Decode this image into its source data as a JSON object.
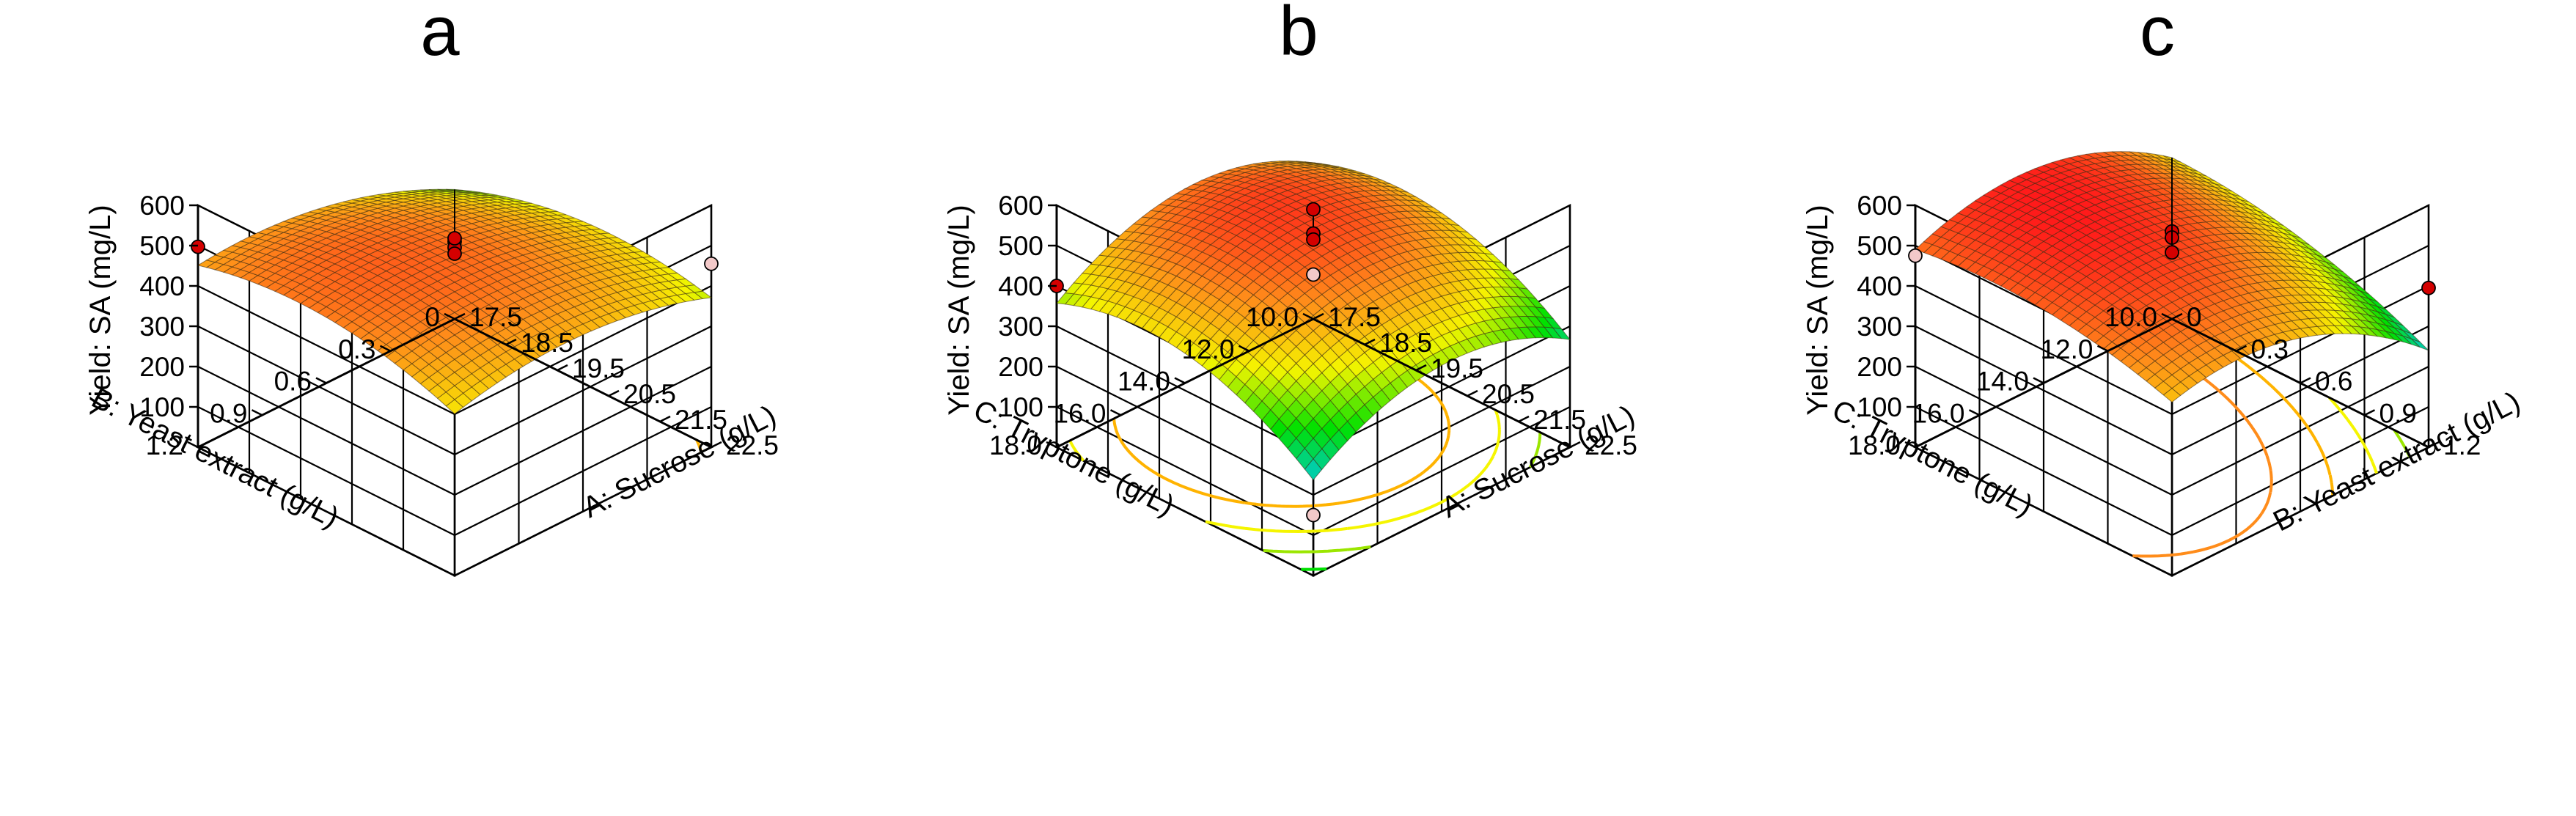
{
  "figure": {
    "panel_labels": [
      "a",
      "b",
      "c"
    ]
  },
  "colors": {
    "floor": "#5f5f5f",
    "point_high": "#d40000",
    "point_low": "#f3c9c9",
    "colormap": [
      "#0a3fd4",
      "#00c8e6",
      "#00e000",
      "#f5f500",
      "#ff8c1a",
      "#ff1a1a"
    ]
  },
  "chart_data": [
    {
      "type": "surface3d",
      "panel": "a",
      "title": "a",
      "zlabel": "Yield: SA (mg/L)",
      "zlim": [
        0,
        600
      ],
      "zticks": [
        100,
        200,
        300,
        400,
        500,
        600
      ],
      "colorscale_range": [
        150,
        550
      ],
      "x_axis": {
        "label": "A: Sucrose (g/L)",
        "range": [
          17.5,
          22.5
        ],
        "ticks": [
          "17.5",
          "18.5",
          "19.5",
          "20.5",
          "21.5",
          "22.5"
        ]
      },
      "y_axis": {
        "label": "B: Yeast extract (g/L)",
        "range": [
          0,
          1.2
        ],
        "ticks": [
          "0",
          "0.3",
          "0.6",
          "0.9",
          "1.2"
        ]
      },
      "model": {
        "center": [
          20,
          0.6
        ],
        "b0": 493,
        "bx": 0,
        "by": 40,
        "bxx": -55,
        "byy": -52,
        "bxy": -25
      },
      "design_points": [
        {
          "x": 17.5,
          "y": 1.2,
          "z": 497,
          "above": true
        },
        {
          "x": 22.5,
          "y": 0,
          "z": 455,
          "above": false
        },
        {
          "x": 20,
          "y": 0.6,
          "z": 510,
          "above": true
        },
        {
          "x": 20,
          "y": 0.6,
          "z": 495,
          "above": true
        },
        {
          "x": 20,
          "y": 0.6,
          "z": 480,
          "above": true
        },
        {
          "x": 17.5,
          "y": 0,
          "z": 200,
          "above": true
        }
      ],
      "contour_levels": [
        {
          "z": 260,
          "color": "#00e000"
        },
        {
          "z": 300,
          "color": "#9be600"
        },
        {
          "z": 340,
          "color": "#f5f500"
        },
        {
          "z": 380,
          "color": "#ffb300"
        }
      ]
    },
    {
      "type": "surface3d",
      "panel": "b",
      "title": "b",
      "zlabel": "Yield: SA (mg/L)",
      "zlim": [
        0,
        600
      ],
      "zticks": [
        100,
        200,
        300,
        400,
        500,
        600
      ],
      "colorscale_range": [
        150,
        550
      ],
      "x_axis": {
        "label": "A: Sucrose (g/L)",
        "range": [
          17.5,
          22.5
        ],
        "ticks": [
          "17.5",
          "18.5",
          "19.5",
          "20.5",
          "21.5",
          "22.5"
        ]
      },
      "y_axis": {
        "label": "C: Tryptone (g/L)",
        "range": [
          10,
          18
        ],
        "ticks": [
          "10.0",
          "12.0",
          "14.0",
          "16.0",
          "18.0"
        ]
      },
      "model": {
        "center": [
          20,
          14
        ],
        "b0": 517,
        "bx": -60,
        "by": -15,
        "bxx": -95,
        "byy": -110,
        "bxy": 0
      },
      "design_points": [
        {
          "x": 17.5,
          "y": 18,
          "z": 400,
          "above": true
        },
        {
          "x": 20,
          "y": 14,
          "z": 590,
          "above": true
        },
        {
          "x": 20,
          "y": 14,
          "z": 530,
          "above": true
        },
        {
          "x": 20,
          "y": 14,
          "z": 515,
          "above": true
        },
        {
          "x": 22.5,
          "y": 18,
          "z": 150,
          "above": false
        },
        {
          "x": 17.5,
          "y": 10,
          "z": 110,
          "above": false
        }
      ],
      "contour_levels": [
        {
          "z": 200,
          "color": "#00c8e6"
        },
        {
          "z": 260,
          "color": "#00e000"
        },
        {
          "z": 320,
          "color": "#9be600"
        },
        {
          "z": 380,
          "color": "#f5f500"
        },
        {
          "z": 440,
          "color": "#ffb300"
        }
      ]
    },
    {
      "type": "surface3d",
      "panel": "c",
      "title": "c",
      "zlabel": "Yield: SA (mg/L)",
      "zlim": [
        0,
        600
      ],
      "zticks": [
        100,
        200,
        300,
        400,
        500,
        600
      ],
      "colorscale_range": [
        150,
        550
      ],
      "x_axis": {
        "label": "B: Yeast extract (g/L)",
        "range": [
          0,
          1.2
        ],
        "ticks": [
          "0",
          "0.3",
          "0.6",
          "0.9",
          "1.2"
        ]
      },
      "y_axis": {
        "label": "C: Tryptone (g/L)",
        "range": [
          10,
          18
        ],
        "ticks": [
          "10.0",
          "12.0",
          "14.0",
          "16.0",
          "18.0"
        ]
      },
      "model": {
        "center": [
          0.6,
          14
        ],
        "b0": 525,
        "bx": -55,
        "by": 70,
        "bxx": -40,
        "byy": -95,
        "bxy": 25
      },
      "design_points": [
        {
          "x": 0,
          "y": 18,
          "z": 475,
          "above": false
        },
        {
          "x": 0.6,
          "y": 14,
          "z": 535,
          "above": true
        },
        {
          "x": 0.6,
          "y": 14,
          "z": 520,
          "above": true
        },
        {
          "x": 1.2,
          "y": 10,
          "z": 395,
          "above": true
        },
        {
          "x": 0,
          "y": 10,
          "z": 165,
          "above": true
        }
      ],
      "contour_levels": [
        {
          "z": 220,
          "color": "#00e000"
        },
        {
          "z": 280,
          "color": "#9be600"
        },
        {
          "z": 340,
          "color": "#f5f500"
        },
        {
          "z": 400,
          "color": "#ffb300"
        },
        {
          "z": 460,
          "color": "#ff8c1a"
        }
      ]
    }
  ]
}
